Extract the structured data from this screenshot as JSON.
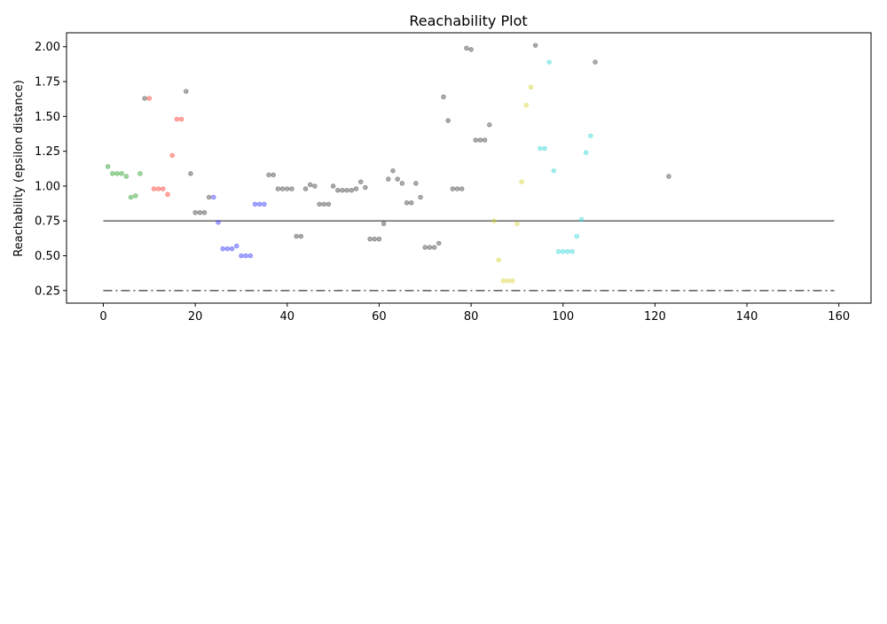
{
  "chart_data": {
    "type": "scatter",
    "title": "Reachability Plot",
    "xlabel": "",
    "ylabel": "Reachability (epsilon distance)",
    "xlim": [
      -8,
      167
    ],
    "ylim": [
      0.16,
      2.1
    ],
    "xticks": [
      0,
      20,
      40,
      60,
      80,
      100,
      120,
      140,
      160
    ],
    "yticks": [
      0.25,
      0.5,
      0.75,
      1.0,
      1.25,
      1.5,
      1.75,
      2.0
    ],
    "grid": false,
    "legend": "none",
    "hlines": [
      {
        "y": 0.75,
        "x0": 0,
        "x1": 159,
        "style": "solid",
        "color": "#666666"
      },
      {
        "y": 0.25,
        "x0": 0,
        "x1": 159,
        "style": "dashdot",
        "color": "#666666"
      }
    ],
    "series": [
      {
        "color": "#2ca02c",
        "points": [
          [
            1,
            1.14
          ],
          [
            2,
            1.09
          ],
          [
            3,
            1.09
          ],
          [
            4,
            1.09
          ],
          [
            5,
            1.07
          ],
          [
            6,
            0.92
          ],
          [
            7,
            0.93
          ],
          [
            8,
            1.09
          ]
        ]
      },
      {
        "color": "#ff3b30",
        "points": [
          [
            10,
            1.63
          ],
          [
            11,
            0.98
          ],
          [
            12,
            0.98
          ],
          [
            13,
            0.98
          ],
          [
            14,
            0.94
          ],
          [
            15,
            1.22
          ],
          [
            16,
            1.48
          ],
          [
            17,
            1.48
          ]
        ]
      },
      {
        "color": "#3a3aff",
        "points": [
          [
            24,
            0.92
          ],
          [
            25,
            0.74
          ],
          [
            26,
            0.55
          ],
          [
            27,
            0.55
          ],
          [
            28,
            0.55
          ],
          [
            29,
            0.57
          ],
          [
            30,
            0.5
          ],
          [
            31,
            0.5
          ],
          [
            32,
            0.5
          ],
          [
            33,
            0.87
          ],
          [
            34,
            0.87
          ],
          [
            35,
            0.87
          ]
        ]
      },
      {
        "color": "#d6d43a",
        "points": [
          [
            85,
            0.75
          ],
          [
            86,
            0.47
          ],
          [
            87,
            0.32
          ],
          [
            88,
            0.32
          ],
          [
            89,
            0.32
          ],
          [
            90,
            0.73
          ],
          [
            91,
            1.03
          ],
          [
            92,
            1.58
          ],
          [
            93,
            1.71
          ]
        ]
      },
      {
        "color": "#3ad6d6",
        "points": [
          [
            95,
            1.27
          ],
          [
            96,
            1.27
          ],
          [
            97,
            1.89
          ],
          [
            98,
            1.11
          ],
          [
            99,
            0.53
          ],
          [
            100,
            0.53
          ],
          [
            101,
            0.53
          ],
          [
            102,
            0.53
          ],
          [
            103,
            0.64
          ],
          [
            104,
            0.76
          ],
          [
            105,
            1.24
          ],
          [
            106,
            1.36
          ]
        ]
      },
      {
        "color": "#444444",
        "points": [
          [
            9,
            1.63
          ],
          [
            18,
            1.68
          ],
          [
            19,
            1.09
          ],
          [
            20,
            0.81
          ],
          [
            21,
            0.81
          ],
          [
            22,
            0.81
          ],
          [
            23,
            0.92
          ],
          [
            36,
            1.08
          ],
          [
            37,
            1.08
          ],
          [
            38,
            0.98
          ],
          [
            39,
            0.98
          ],
          [
            40,
            0.98
          ],
          [
            41,
            0.98
          ],
          [
            42,
            0.64
          ],
          [
            43,
            0.64
          ],
          [
            44,
            0.98
          ],
          [
            45,
            1.01
          ],
          [
            46,
            1.0
          ],
          [
            47,
            0.87
          ],
          [
            48,
            0.87
          ],
          [
            49,
            0.87
          ],
          [
            50,
            1.0
          ],
          [
            51,
            0.97
          ],
          [
            52,
            0.97
          ],
          [
            53,
            0.97
          ],
          [
            54,
            0.97
          ],
          [
            55,
            0.98
          ],
          [
            56,
            1.03
          ],
          [
            57,
            0.99
          ],
          [
            58,
            0.62
          ],
          [
            59,
            0.62
          ],
          [
            60,
            0.62
          ],
          [
            61,
            0.73
          ],
          [
            62,
            1.05
          ],
          [
            63,
            1.11
          ],
          [
            64,
            1.05
          ],
          [
            65,
            1.02
          ],
          [
            66,
            0.88
          ],
          [
            67,
            0.88
          ],
          [
            68,
            1.02
          ],
          [
            69,
            0.92
          ],
          [
            70,
            0.56
          ],
          [
            71,
            0.56
          ],
          [
            72,
            0.56
          ],
          [
            73,
            0.59
          ],
          [
            74,
            1.64
          ],
          [
            75,
            1.47
          ],
          [
            76,
            0.98
          ],
          [
            77,
            0.98
          ],
          [
            78,
            0.98
          ],
          [
            79,
            1.99
          ],
          [
            80,
            1.98
          ],
          [
            81,
            1.33
          ],
          [
            82,
            1.33
          ],
          [
            83,
            1.33
          ],
          [
            84,
            1.44
          ],
          [
            94,
            2.01
          ],
          [
            107,
            1.89
          ],
          [
            123,
            1.07
          ]
        ]
      }
    ]
  }
}
